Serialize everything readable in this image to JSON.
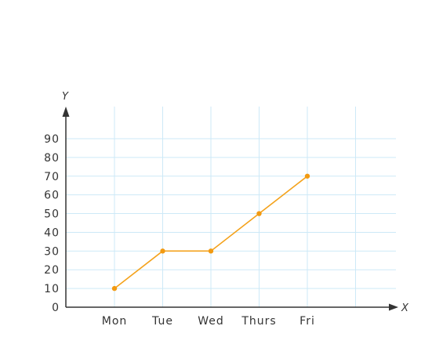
{
  "chart_data": {
    "type": "line",
    "categories": [
      "Mon",
      "Tue",
      "Wed",
      "Thurs",
      "Fri"
    ],
    "values": [
      10,
      30,
      30,
      50,
      70
    ],
    "xlabel": "X",
    "ylabel": "Y",
    "ylim": [
      0,
      90
    ],
    "yticks": [
      "0",
      "10",
      "20",
      "30",
      "40",
      "50",
      "60",
      "70",
      "80",
      "90"
    ],
    "grid": true,
    "colors": {
      "line": "#f4a21b",
      "point": "#f29a12",
      "grid": "#cde9f7",
      "axis": "#333333"
    }
  }
}
